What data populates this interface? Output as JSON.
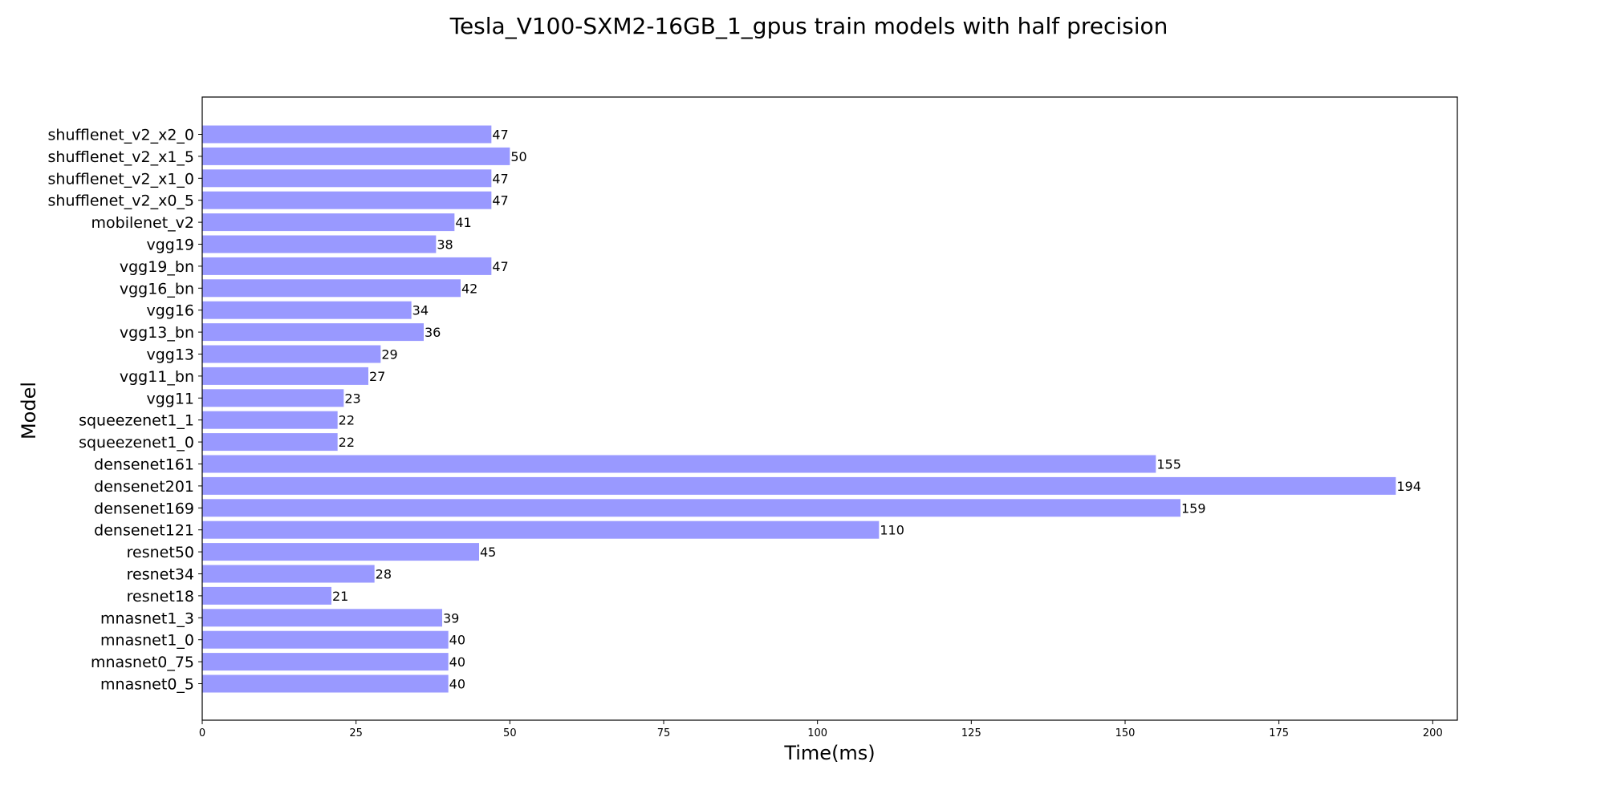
{
  "chart_data": {
    "type": "bar",
    "orientation": "horizontal",
    "title": "Tesla_V100-SXM2-16GB_1_gpus train models with half precision",
    "xlabel": "Time(ms)",
    "ylabel": "Model",
    "xlim": [
      0,
      204
    ],
    "xticks": [
      0,
      25,
      50,
      75,
      100,
      125,
      150,
      175,
      200
    ],
    "xtick_labels": [
      "0",
      "25",
      "50",
      "75",
      "100",
      "125",
      "150",
      "175",
      "200"
    ],
    "grid": false,
    "bar_color": "#9999ff",
    "categories": [
      "shufflenet_v2_x2_0",
      "shufflenet_v2_x1_5",
      "shufflenet_v2_x1_0",
      "shufflenet_v2_x0_5",
      "mobilenet_v2",
      "vgg19",
      "vgg19_bn",
      "vgg16_bn",
      "vgg16",
      "vgg13_bn",
      "vgg13",
      "vgg11_bn",
      "vgg11",
      "squeezenet1_1",
      "squeezenet1_0",
      "densenet161",
      "densenet201",
      "densenet169",
      "densenet121",
      "resnet50",
      "resnet34",
      "resnet18",
      "mnasnet1_3",
      "mnasnet1_0",
      "mnasnet0_75",
      "mnasnet0_5"
    ],
    "values": [
      47,
      50,
      47,
      47,
      41,
      38,
      47,
      42,
      34,
      36,
      29,
      27,
      23,
      22,
      22,
      155,
      194,
      159,
      110,
      45,
      28,
      21,
      39,
      40,
      40,
      40
    ],
    "data_labels": [
      "47",
      "50",
      "47",
      "47",
      "41",
      "38",
      "47",
      "42",
      "34",
      "36",
      "29",
      "27",
      "23",
      "22",
      "22",
      "155",
      "194",
      "159",
      "110",
      "45",
      "28",
      "21",
      "39",
      "40",
      "40",
      "40"
    ]
  }
}
